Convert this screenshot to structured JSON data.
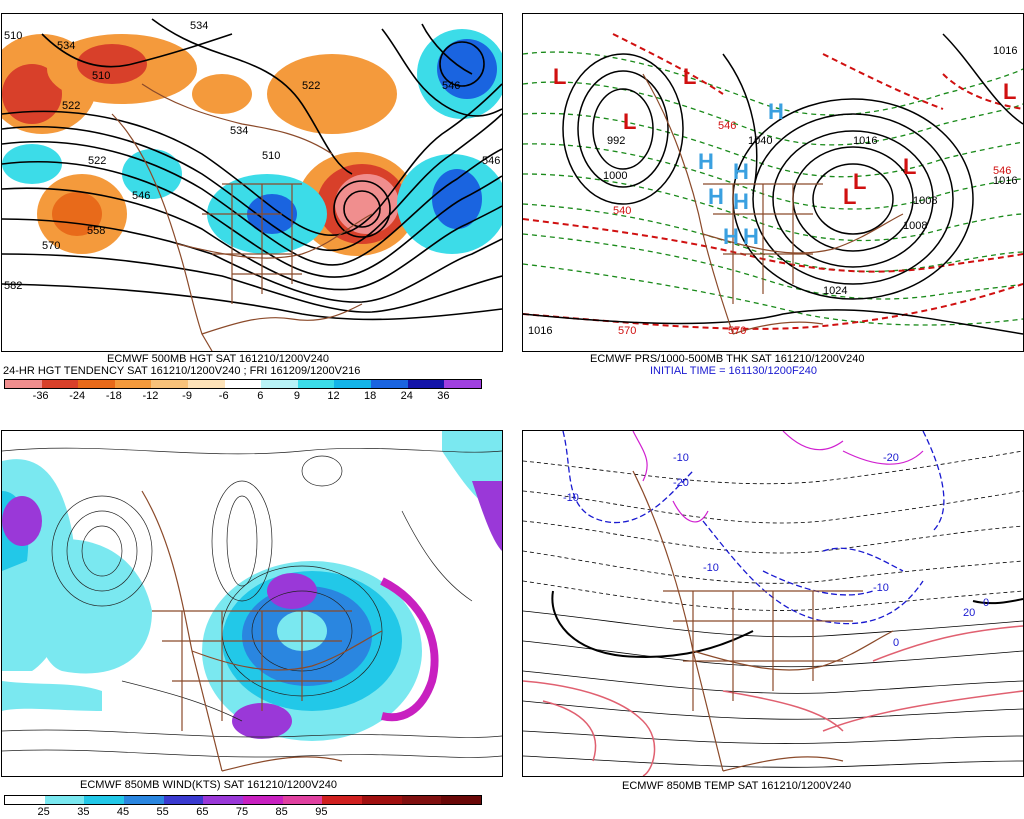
{
  "panels": {
    "top_left": {
      "caption1": "ECMWF 500MB HGT SAT 161210/1200V240",
      "caption2": "24-HR HGT TENDENCY SAT 161210/1200V240 ; FRI 161209/1200V216",
      "contour_labels": [
        "510",
        "534",
        "510",
        "522",
        "534",
        "522",
        "546",
        "510",
        "534",
        "522",
        "546",
        "546",
        "558",
        "570",
        "582"
      ],
      "colorbar": {
        "ticks": [
          "-36",
          "-24",
          "-18",
          "-12",
          "-9",
          "-6",
          "6",
          "9",
          "12",
          "18",
          "24",
          "36"
        ],
        "colors": [
          "#f08e8e",
          "#d8402a",
          "#e86a1a",
          "#f49a3c",
          "#f8c27a",
          "#fde2b8",
          "#ffffff",
          "#b8f2f6",
          "#3cdce8",
          "#14b4e8",
          "#1a64e0",
          "#1414a8",
          "#a040e0"
        ]
      }
    },
    "top_right": {
      "caption1": "ECMWF PRS/1000-500MB THK SAT 161210/1200V240",
      "caption2": "INITIAL TIME = 161130/1200F240",
      "pressure_labels": [
        "992",
        "1000",
        "1040",
        "1016",
        "1016",
        "1008",
        "1008",
        "1024",
        "1016",
        "1016"
      ],
      "thickness_labels": [
        "546",
        "546",
        "570",
        "570",
        "540"
      ],
      "high_symbol": "H",
      "low_symbol": "L"
    },
    "bottom_left": {
      "caption": "ECMWF 850MB WIND(KTS) SAT 161210/1200V240",
      "colorbar": {
        "ticks": [
          "25",
          "35",
          "45",
          "55",
          "65",
          "75",
          "85",
          "95"
        ],
        "colors": [
          "#ffffff",
          "#7ae8f0",
          "#22c8e8",
          "#2a86e0",
          "#3a3ad0",
          "#9a38d8",
          "#c820c0",
          "#e040a0",
          "#d02020",
          "#a01010",
          "#801010",
          "#6a0808"
        ]
      }
    },
    "bottom_right": {
      "caption": "ECMWF 850MB TEMP SAT 161210/1200V240",
      "temp_labels": [
        "-10",
        "-20",
        "-10",
        "-10",
        "-20",
        "-10",
        "0",
        "0",
        "20"
      ]
    }
  },
  "colors": {
    "coast": "#8b4a2a",
    "contour": "#000000",
    "thickness": "#d01010",
    "dashed_green": "#1a8a1a",
    "high": "#3aa0e0",
    "low": "#d01010"
  }
}
